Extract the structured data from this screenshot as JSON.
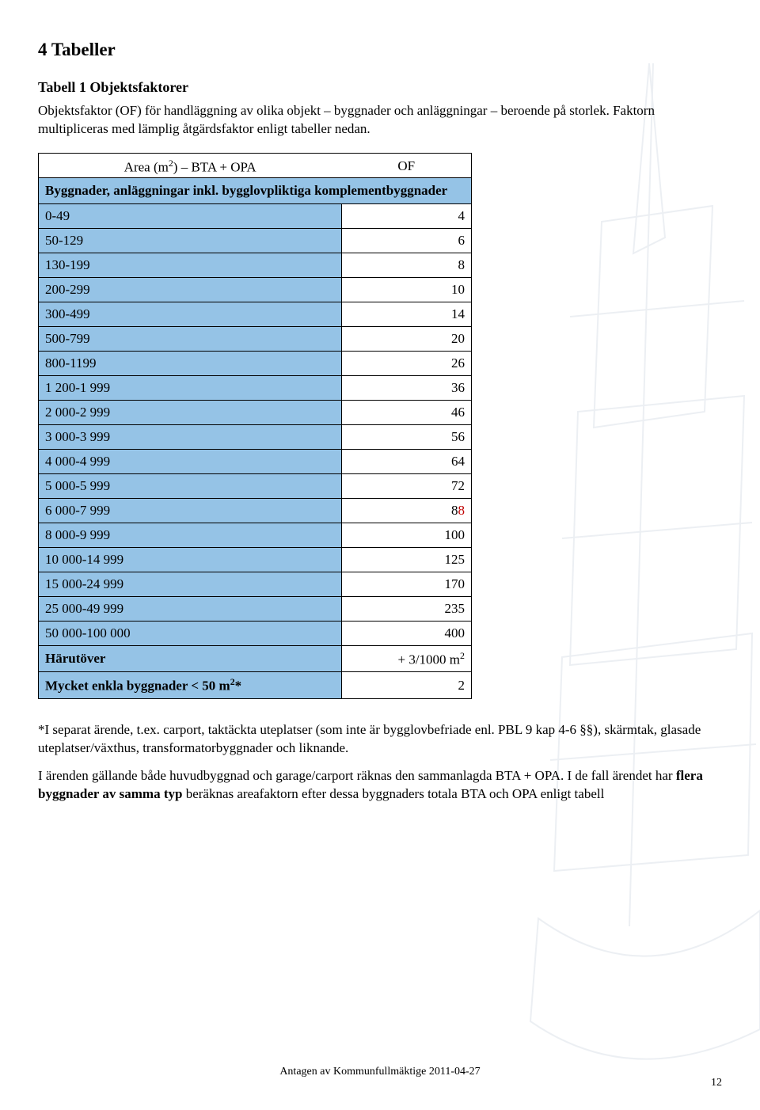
{
  "heading": "4 Tabeller",
  "subheading": "Tabell 1 Objektsfaktorer",
  "intro": "Objektsfaktor (OF) för handläggning av olika objekt – byggnader och anläggningar – beroende på storlek. Faktorn multipliceras med lämplig åtgärdsfaktor enligt tabeller nedan.",
  "table": {
    "col1_header_pre": "Area (m",
    "col1_header_post": ") – BTA + OPA",
    "col2_header": "OF",
    "subheader": "Byggnader, anläggningar inkl. bygglovpliktiga komplementbyggnader",
    "rows": [
      [
        "0-49",
        "4"
      ],
      [
        "50-129",
        "6"
      ],
      [
        "130-199",
        "8"
      ],
      [
        "200-299",
        "10"
      ],
      [
        "300-499",
        "14"
      ],
      [
        "500-799",
        "20"
      ],
      [
        "800-1199",
        "26"
      ],
      [
        "1 200-1 999",
        "36"
      ],
      [
        "2 000-2 999",
        "46"
      ],
      [
        "3 000-3 999",
        "56"
      ],
      [
        "4 000-4 999",
        "64"
      ],
      [
        "5 000-5 999",
        "72"
      ],
      [
        "6 000-7 999",
        "88"
      ],
      [
        "8 000-9 999",
        "100"
      ],
      [
        "10 000-14 999",
        "125"
      ],
      [
        "15 000-24 999",
        "170"
      ],
      [
        "25 000-49 999",
        "235"
      ],
      [
        "50 000-100 000",
        "400"
      ]
    ],
    "harutover_label": "Härutöver",
    "harutover_val_pre": "+ 3/1000 m",
    "enkla_pre": "Mycket enkla byggnader < 50 m",
    "enkla_post": "*",
    "enkla_val": "2"
  },
  "note1": "*I separat ärende, t.ex. carport, taktäckta uteplatser (som inte är bygglovbefriade enl. PBL 9 kap 4-6 §§), skärmtak, glasade uteplatser/växthus, transformatorbyggnader och liknande.",
  "note2_pre": "I ärenden gällande både huvudbyggnad och garage/carport räknas den sammanlagda BTA + OPA. I de fall ärendet har ",
  "note2_bold": "flera byggnader av samma typ",
  "note2_post": " beräknas areafaktorn efter dessa byggnaders totala BTA och OPA enligt tabell",
  "footer": "Antagen av Kommunfullmäktige 2011-04-27",
  "pagenum": "12",
  "colors": {
    "row_bg": "#95c3e6",
    "red": "#c00000"
  }
}
